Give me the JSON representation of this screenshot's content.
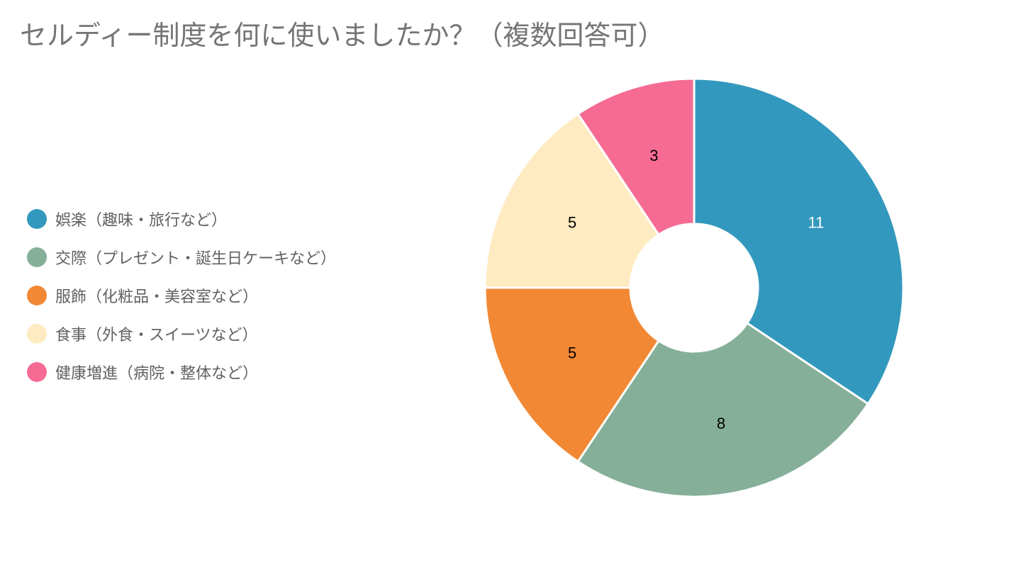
{
  "chart_data": {
    "type": "pie",
    "donut": true,
    "title": "セルディー制度を何に使いましたか？（複数回答可）",
    "legend_position": "left",
    "categories": [
      "娯楽（趣味・旅行など）",
      "交際（プレゼント・誕生日ケーキなど）",
      "服飾（化粧品・美容室など）",
      "食事（外食・スイーツなど）",
      "健康増進（病院・整体など）"
    ],
    "values": [
      11,
      8,
      5,
      5,
      3
    ],
    "data_labels": [
      "11",
      "8",
      "5",
      "5",
      "3"
    ],
    "colors": [
      "#3398bd",
      "#85af99",
      "#f28834",
      "#ffebc1",
      "#f56b93"
    ],
    "label_colors": [
      "#ffffff",
      "#000000",
      "#000000",
      "#000000",
      "#000000"
    ]
  }
}
